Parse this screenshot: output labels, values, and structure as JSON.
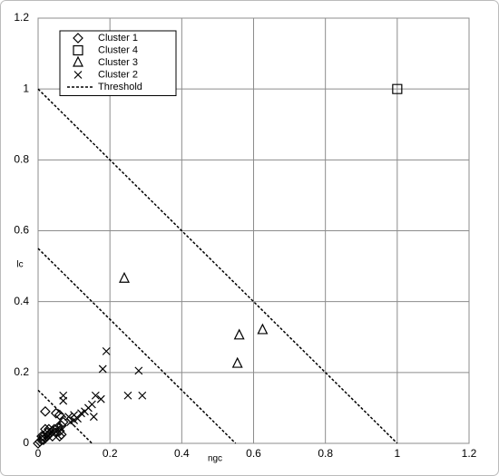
{
  "chart_data": {
    "type": "scatter",
    "xlabel": "ngc",
    "ylabel": "lc",
    "xlim": [
      0,
      1.2
    ],
    "ylim": [
      0,
      1.2
    ],
    "xticks": [
      0,
      0.2,
      0.4,
      0.6,
      0.8,
      1,
      1.2
    ],
    "yticks": [
      0,
      0.2,
      0.4,
      0.6,
      0.8,
      1,
      1.2
    ],
    "grid": true,
    "legend": "upper left",
    "series": [
      {
        "name": "Cluster 1",
        "color": "#000000",
        "marker": "diamond",
        "x": [
          0.02,
          0.05,
          0.06,
          0.07,
          0.065,
          0.055,
          0.06,
          0.05,
          0.045,
          0.04,
          0.035,
          0.03,
          0.025,
          0.02,
          0.015,
          0.01,
          0.005,
          0,
          0.015,
          0.025,
          0.03,
          0.06,
          0.065,
          0.04,
          0.02,
          0.01
        ],
        "values": [
          0.09,
          0.085,
          0.08,
          0.06,
          0.05,
          0.045,
          0.035,
          0.03,
          0.04,
          0.035,
          0.03,
          0.025,
          0.02,
          0.015,
          0.01,
          0.01,
          0.005,
          0,
          0.02,
          0.03,
          0.04,
          0.02,
          0.025,
          0.02,
          0.04,
          0.02
        ]
      },
      {
        "name": "Cluster 4",
        "color": "#000000",
        "marker": "square",
        "x": [
          1
        ],
        "values": [
          1
        ]
      },
      {
        "name": "Cluster 3",
        "color": "#000000",
        "marker": "triangle",
        "x": [
          0.24,
          0.56,
          0.555,
          0.625
        ],
        "values": [
          0.465,
          0.305,
          0.225,
          0.32
        ]
      },
      {
        "name": "Cluster 2",
        "color": "#000000",
        "marker": "x",
        "x": [
          0.19,
          0.18,
          0.28,
          0.25,
          0.29,
          0.07,
          0.16,
          0.175,
          0.15,
          0.155,
          0.13,
          0.12,
          0.1,
          0.1,
          0.085,
          0.07,
          0.11,
          0.09,
          0.14
        ],
        "values": [
          0.26,
          0.21,
          0.205,
          0.135,
          0.135,
          0.135,
          0.135,
          0.125,
          0.11,
          0.075,
          0.09,
          0.085,
          0.08,
          0.065,
          0.075,
          0.12,
          0.07,
          0.06,
          0.1
        ]
      },
      {
        "name": "Threshold",
        "color": "#000000",
        "marker": "line",
        "linestyle": "dashed",
        "x": [
          0,
          1,
          null,
          0,
          0.55,
          null,
          0,
          0.15
        ],
        "values": [
          1,
          0,
          null,
          0.55,
          0,
          null,
          0.15,
          0
        ]
      }
    ]
  }
}
